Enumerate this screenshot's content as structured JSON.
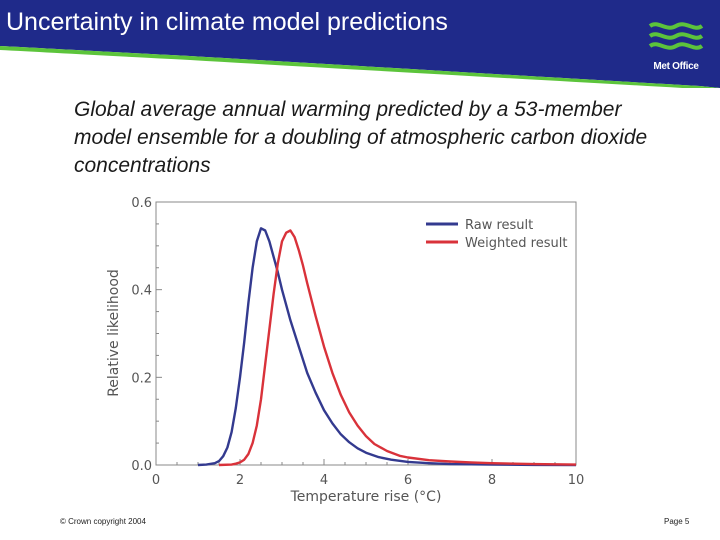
{
  "slide": {
    "title": "Uncertainty in climate model predictions",
    "subtitle": "Global average annual warming predicted by a 53-member model ensemble for a doubling of atmospheric carbon dioxide concentrations"
  },
  "logo": {
    "text": "Met Office",
    "color": "#5cc43b"
  },
  "footer": {
    "copyright": "© Crown copyright 2004",
    "page": "Page 5"
  },
  "colors": {
    "header": "#1f2a8a",
    "raw": "#333a8f",
    "weighted": "#d9323a"
  },
  "chart_data": {
    "type": "line",
    "title": "",
    "xlabel": "Temperature rise (°C)",
    "ylabel": "Relative likelihood",
    "xlim": [
      0,
      10
    ],
    "ylim": [
      0,
      0.6
    ],
    "xticks": [
      0,
      2,
      4,
      6,
      8,
      10
    ],
    "yticks": [
      0.0,
      0.2,
      0.4,
      0.6
    ],
    "ytick_labels": [
      "0.0",
      "0.2",
      "0.4",
      "0.6"
    ],
    "legend_position": "top-right",
    "series": [
      {
        "name": "Raw result",
        "color": "#333a8f",
        "x": [
          1.0,
          1.2,
          1.4,
          1.5,
          1.6,
          1.7,
          1.8,
          1.9,
          2.0,
          2.1,
          2.2,
          2.3,
          2.4,
          2.5,
          2.6,
          2.7,
          2.8,
          2.9,
          3.0,
          3.2,
          3.4,
          3.6,
          3.8,
          4.0,
          4.2,
          4.4,
          4.6,
          4.8,
          5.0,
          5.3,
          5.6,
          6.0,
          6.5,
          7.0,
          8.0,
          9.0,
          10.0
        ],
        "y": [
          0.0,
          0.001,
          0.004,
          0.009,
          0.02,
          0.04,
          0.075,
          0.13,
          0.2,
          0.28,
          0.37,
          0.45,
          0.51,
          0.54,
          0.535,
          0.51,
          0.475,
          0.44,
          0.4,
          0.33,
          0.27,
          0.21,
          0.165,
          0.125,
          0.095,
          0.07,
          0.052,
          0.038,
          0.028,
          0.018,
          0.012,
          0.007,
          0.004,
          0.002,
          0.001,
          0.0003,
          0.0
        ]
      },
      {
        "name": "Weighted result",
        "color": "#d9323a",
        "x": [
          1.5,
          1.8,
          1.9,
          2.0,
          2.1,
          2.2,
          2.3,
          2.4,
          2.5,
          2.6,
          2.7,
          2.8,
          2.9,
          3.0,
          3.1,
          3.2,
          3.3,
          3.4,
          3.5,
          3.6,
          3.8,
          4.0,
          4.2,
          4.4,
          4.6,
          4.8,
          5.0,
          5.2,
          5.5,
          5.8,
          6.0,
          6.5,
          7.0,
          7.5,
          8.0,
          9.0,
          10.0
        ],
        "y": [
          0.0,
          0.001,
          0.003,
          0.006,
          0.012,
          0.025,
          0.05,
          0.09,
          0.15,
          0.23,
          0.31,
          0.39,
          0.46,
          0.51,
          0.53,
          0.535,
          0.52,
          0.49,
          0.455,
          0.415,
          0.34,
          0.27,
          0.21,
          0.16,
          0.12,
          0.09,
          0.066,
          0.048,
          0.032,
          0.021,
          0.017,
          0.011,
          0.008,
          0.006,
          0.004,
          0.002,
          0.001
        ]
      }
    ]
  }
}
